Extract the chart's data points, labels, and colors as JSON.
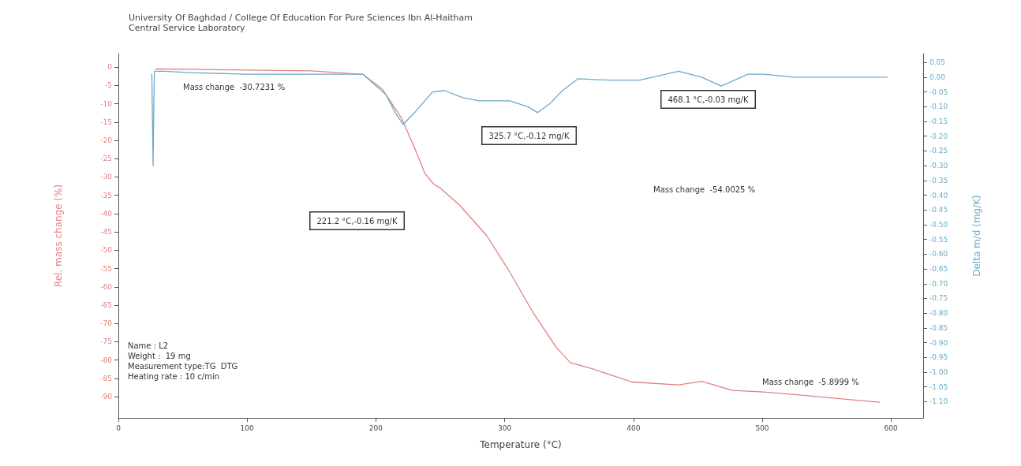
{
  "chart_data": {
    "type": "line",
    "title": "University Of Baghdad / College Of Education For Pure Sciences Ibn Al-Haitham",
    "subtitle": "Central Service Laboratory",
    "xlabel": "Temperature (°C)",
    "ylabel": "Rel. mass change (%)",
    "y2label": "Delta m/d (mg/K)",
    "xlim": [
      0,
      625
    ],
    "xticks": [
      0,
      100,
      200,
      300,
      400,
      500,
      600
    ],
    "ylim": [
      -95.8,
      3.7
    ],
    "yticks": [
      0,
      -5,
      -10,
      -15,
      -20,
      -25,
      -30,
      -35,
      -40,
      -45,
      -50,
      -55,
      -60,
      -65,
      -70,
      -75,
      -80,
      -85,
      -90
    ],
    "y2lim": [
      -1.155,
      0.08
    ],
    "y2ticks": [
      {
        "value": 0.05,
        "label": "0.05"
      },
      {
        "value": 0,
        "label": "0.00"
      },
      {
        "value": -0.05,
        "label": "-0.05"
      },
      {
        "value": -0.1,
        "label": "-0.10"
      },
      {
        "value": -0.15,
        "label": "-0.15"
      },
      {
        "value": -0.2,
        "label": "-0.20"
      },
      {
        "value": -0.25,
        "label": "-0.25"
      },
      {
        "value": -0.3,
        "label": "-0.30"
      },
      {
        "value": -0.35,
        "label": "-0.35"
      },
      {
        "value": -0.4,
        "label": "-0.40"
      },
      {
        "value": -0.45,
        "label": "-0.45"
      },
      {
        "value": -0.5,
        "label": "-0.50"
      },
      {
        "value": -0.55,
        "label": "-0.55"
      },
      {
        "value": -0.6,
        "label": "-0.60"
      },
      {
        "value": -0.65,
        "label": "-0.65"
      },
      {
        "value": -0.7,
        "label": "-0.70"
      },
      {
        "value": -0.75,
        "label": "-0.75"
      },
      {
        "value": -0.8,
        "label": "-0.80"
      },
      {
        "value": -0.85,
        "label": "-0.85"
      },
      {
        "value": -0.9,
        "label": "-0.90"
      },
      {
        "value": -0.95,
        "label": "-0.95"
      },
      {
        "value": -1,
        "label": "-1.00"
      },
      {
        "value": -1.05,
        "label": "-1.05"
      },
      {
        "value": -1.1,
        "label": "-1.10"
      }
    ],
    "grid": false,
    "marker": "none",
    "line_style": "solid",
    "series": [
      {
        "color": "#e08080",
        "x": [
          29,
          60,
          100,
          150,
          190,
          205,
          220,
          230,
          238,
          245,
          250,
          265,
          286,
          304,
          322,
          340,
          351,
          369,
          399,
          435,
          453,
          477,
          501,
          525,
          555,
          591
        ],
        "values": [
          -0.5,
          -0.6,
          -0.8,
          -1,
          -2,
          -6,
          -14,
          -22,
          -29,
          -32,
          -33,
          -37.7,
          -46,
          -56,
          -67,
          -76.5,
          -80.7,
          -82.5,
          -86,
          -86.8,
          -85.8,
          -88.3,
          -88.7,
          -89.4,
          -90.4,
          -91.5
        ]
      },
      {
        "color": "#6aaac8",
        "axis": "y2",
        "x": [
          26,
          27,
          27.5,
          28,
          35,
          60,
          100,
          150,
          190,
          208,
          215,
          221.2,
          230,
          244,
          253,
          268,
          280,
          304,
          318,
          325.7,
          335,
          345,
          357,
          381,
          405,
          435,
          453,
          468.1,
          489,
          501,
          525,
          555,
          597
        ],
        "values": [
          0.01,
          -0.3,
          -0.1,
          0.02,
          0.02,
          0.015,
          0.01,
          0.01,
          0.01,
          -0.06,
          -0.12,
          -0.16,
          -0.12,
          -0.05,
          -0.045,
          -0.07,
          -0.08,
          -0.08,
          -0.1,
          -0.12,
          -0.09,
          -0.045,
          -0.005,
          -0.01,
          -0.01,
          0.02,
          0,
          -0.03,
          0.01,
          0.01,
          0,
          0,
          0
        ]
      }
    ],
    "annotations": [
      "Mass change  -30.7231 %",
      "Mass change  -54.0025 %",
      "Mass change  -5.8999 %",
      "Name : L2\nWeight :  19 mg\nMeasurement type:TG  DTG\nHeating rate : 10 c/min",
      "221.2 °C,-0.16 mg/K",
      "325.7 °C,-0.12 mg/K",
      "468.1 °C,-0.03 mg/K"
    ]
  }
}
